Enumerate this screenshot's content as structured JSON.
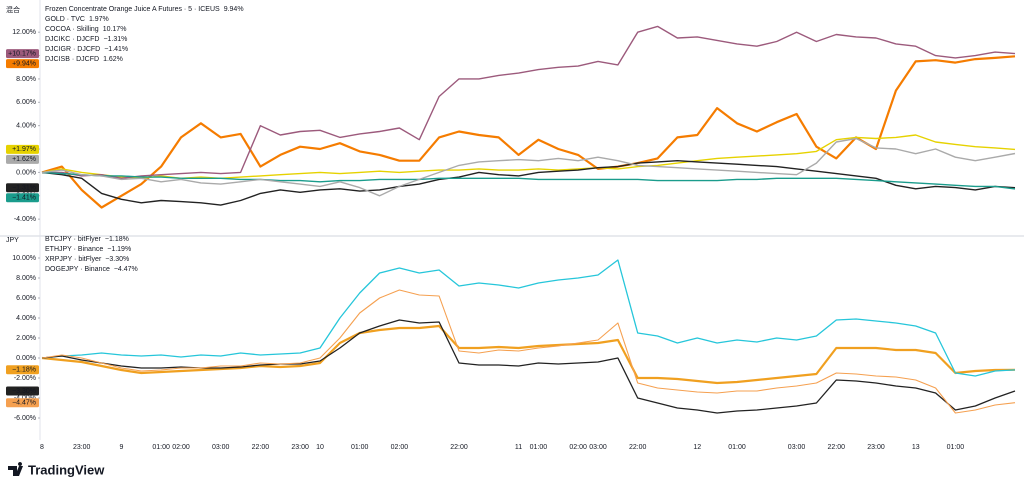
{
  "chart_data": [
    {
      "type": "line",
      "pane_label": "混合",
      "title": "Frozen Concentrate Orange Juice A Futures · 5 · ICEUS",
      "ylim": [
        -5.1,
        13.9
      ],
      "yticks": [
        {
          "value": -4,
          "label": "-4.00%"
        },
        {
          "value": -2,
          "label": "-2.00%"
        },
        {
          "value": 0,
          "label": "0.00%"
        },
        {
          "value": 2,
          "label": "2.00%"
        },
        {
          "value": 4,
          "label": "4.00%"
        },
        {
          "value": 6,
          "label": "6.00%"
        },
        {
          "value": 8,
          "label": "8.00%"
        },
        {
          "value": 10,
          "label": "10.00%"
        },
        {
          "value": 12,
          "label": "12.00%"
        }
      ],
      "grid": false,
      "series": [
        {
          "name": "Frozen Concentrate Orange Juice A Futures · 5 · ICEUS",
          "legend_name": "",
          "change": "9.94%",
          "badge": "+9.94%",
          "color": "#f57c00",
          "width": 2.2,
          "values": [
            0,
            0.5,
            -1.5,
            -3,
            -2,
            -1,
            0.5,
            3,
            4.2,
            3,
            3.3,
            0.5,
            1.5,
            2.2,
            2,
            2.5,
            1.8,
            1.5,
            1,
            1,
            3,
            3.5,
            3.2,
            3,
            1.5,
            2.8,
            2,
            1.5,
            0.3,
            0.5,
            0.8,
            1.2,
            3,
            3.2,
            5.5,
            4.2,
            3.5,
            4.3,
            5,
            2.2,
            1.2,
            3,
            2,
            7,
            9.5,
            9.6,
            9.4,
            9.7,
            9.8,
            9.94
          ]
        },
        {
          "name": "GOLD · TVC",
          "change": "1.97%",
          "badge": "+1.97%",
          "color": "#e6d200",
          "width": 1.4,
          "values": [
            0,
            0.3,
            0,
            -0.2,
            -0.4,
            -0.5,
            -0.3,
            -0.5,
            -0.4,
            -0.5,
            -0.4,
            -0.3,
            -0.2,
            -0.1,
            0,
            -0.1,
            0,
            0.1,
            0,
            0.1,
            0.2,
            0.2,
            0.3,
            0.2,
            0.2,
            0.3,
            0.2,
            0.3,
            0.4,
            0.3,
            0.5,
            0.6,
            0.8,
            1,
            1.2,
            1.3,
            1.4,
            1.5,
            1.6,
            1.8,
            2.8,
            3,
            2.9,
            3,
            3.2,
            2.6,
            2.4,
            2.2,
            2.1,
            1.97
          ]
        },
        {
          "name": "COCOA · Skilling",
          "change": "10.17%",
          "badge": "+10.17%",
          "color": "#9c5a7c",
          "width": 1.4,
          "values": [
            0,
            0,
            -0.3,
            -0.2,
            -0.5,
            -0.3,
            -0.2,
            -0.1,
            0,
            -0.1,
            0,
            4,
            3.2,
            3.5,
            3.6,
            3,
            3.3,
            3.5,
            3.8,
            2.8,
            6.5,
            8,
            8,
            8.3,
            8.5,
            8.8,
            9,
            9.1,
            9.5,
            9.2,
            12,
            12.5,
            11.5,
            11.6,
            11.3,
            11,
            10.8,
            11.2,
            12,
            11.2,
            11.8,
            11.6,
            11.5,
            11,
            10.8,
            10,
            9.8,
            10,
            10.3,
            10.17
          ]
        },
        {
          "name": "DJCIKC · DJCFD",
          "change": "−1.31%",
          "badge": "−1.31%",
          "color": "#222222",
          "width": 1.4,
          "values": [
            0,
            -0.2,
            -0.5,
            -1.8,
            -2.3,
            -2.6,
            -2.4,
            -2.5,
            -2.6,
            -2.8,
            -2.4,
            -1.8,
            -1.5,
            -1.7,
            -1.5,
            -1.4,
            -1.6,
            -1.5,
            -1.2,
            -1,
            -0.6,
            -0.4,
            0,
            -0.2,
            -0.3,
            0,
            0.1,
            0.2,
            0.4,
            0.5,
            0.8,
            0.9,
            1,
            0.9,
            0.8,
            0.7,
            0.6,
            0.5,
            0.3,
            0.1,
            -0.1,
            -0.3,
            -0.5,
            -1.1,
            -1.4,
            -1.2,
            -1.3,
            -1.5,
            -1.2,
            -1.31
          ]
        },
        {
          "name": "DJCIGR · DJCFD",
          "change": "−1.41%",
          "badge": "−1.41%",
          "color": "#1a9c8c",
          "width": 1.4,
          "values": [
            0,
            -0.1,
            -0.2,
            -0.3,
            -0.3,
            -0.4,
            -0.4,
            -0.5,
            -0.5,
            -0.5,
            -0.6,
            -0.6,
            -0.7,
            -0.7,
            -0.8,
            -0.7,
            -0.7,
            -0.6,
            -0.6,
            -0.6,
            -0.5,
            -0.5,
            -0.5,
            -0.5,
            -0.5,
            -0.6,
            -0.6,
            -0.6,
            -0.6,
            -0.6,
            -0.6,
            -0.7,
            -0.7,
            -0.7,
            -0.7,
            -0.6,
            -0.6,
            -0.5,
            -0.5,
            -0.5,
            -0.5,
            -0.6,
            -0.7,
            -0.8,
            -0.9,
            -1,
            -1.1,
            -1.2,
            -1.2,
            -1.41
          ]
        },
        {
          "name": "DJCISB · DJCFD",
          "change": "1.62%",
          "badge": "+1.62%",
          "color": "#aaaaaa",
          "width": 1.4,
          "values": [
            0,
            0.2,
            -0.2,
            -0.3,
            -0.6,
            -0.5,
            -0.8,
            -0.6,
            -0.9,
            -1,
            -0.8,
            -0.6,
            -0.8,
            -1,
            -1.2,
            -0.8,
            -1.3,
            -2,
            -1.2,
            -0.6,
            0,
            0.6,
            0.9,
            1,
            1.1,
            1,
            1.2,
            1,
            1.3,
            1,
            0.6,
            0.5,
            0.4,
            0.3,
            0.2,
            0.1,
            0,
            -0.1,
            -0.2,
            0.8,
            2.6,
            2.9,
            2.1,
            2,
            1.6,
            2,
            1.3,
            1,
            1.3,
            1.62
          ]
        }
      ]
    },
    {
      "type": "line",
      "pane_label": "JPY",
      "categories": [
        "8",
        null,
        "23:00",
        null,
        "9",
        null,
        "01:00",
        "02:00",
        null,
        "03:00",
        null,
        "22:00",
        null,
        "23:00",
        "10",
        null,
        "01:00",
        null,
        "02:00",
        null,
        null,
        "22:00",
        null,
        null,
        "11",
        "01:00",
        null,
        "02:00",
        "03:00",
        null,
        "22:00",
        null,
        null,
        "12",
        null,
        "01:00",
        null,
        null,
        "03:00",
        null,
        "22:00",
        null,
        "23:00",
        null,
        "13",
        null,
        "01:00",
        null,
        null,
        null
      ],
      "ylim": [
        -7.7,
        11.8
      ],
      "yticks": [
        {
          "value": -6,
          "label": "-6.00%"
        },
        {
          "value": -4,
          "label": "-4.00%"
        },
        {
          "value": -2,
          "label": "-2.00%"
        },
        {
          "value": 0,
          "label": "0.00%"
        },
        {
          "value": 2,
          "label": "2.00%"
        },
        {
          "value": 4,
          "label": "4.00%"
        },
        {
          "value": 6,
          "label": "6.00%"
        },
        {
          "value": 8,
          "label": "8.00%"
        },
        {
          "value": 10,
          "label": "10.00%"
        }
      ],
      "grid": false,
      "series": [
        {
          "name": "BTCJPY · bitFlyer",
          "change": "−1.18%",
          "badge": "−1.18%",
          "color": "#f0a020",
          "width": 2.2,
          "values": [
            0,
            -0.2,
            -0.4,
            -0.8,
            -1.2,
            -1.5,
            -1.4,
            -1.3,
            -1.2,
            -1.1,
            -1,
            -0.8,
            -0.9,
            -0.8,
            -0.5,
            1.5,
            2.5,
            2.8,
            3,
            3,
            3.2,
            1,
            1,
            1.1,
            1,
            1.2,
            1.3,
            1.4,
            1.5,
            1.8,
            -2,
            -2,
            -2.1,
            -2.3,
            -2.5,
            -2.4,
            -2.2,
            -2,
            -1.8,
            -1.6,
            1,
            1,
            1,
            0.8,
            0.8,
            0.5,
            -1.5,
            -1.3,
            -1.2,
            -1.18
          ]
        },
        {
          "name": "ETHJPY · Binance",
          "change": "−1.19%",
          "color": "#26c6da",
          "width": 1.3,
          "values": [
            0,
            0.2,
            0.3,
            0.5,
            0.3,
            0.2,
            0.3,
            0.1,
            0.3,
            0.2,
            0.5,
            0.3,
            0.4,
            0.5,
            1,
            4,
            6.5,
            8.5,
            9,
            8.5,
            8.8,
            7.2,
            7.5,
            7.3,
            7,
            7.5,
            7.8,
            8,
            8.3,
            9.8,
            2.5,
            2.2,
            1.5,
            2,
            1.5,
            1.8,
            1.6,
            2,
            1.8,
            2.2,
            3.8,
            3.9,
            3.7,
            3.5,
            3.2,
            2.5,
            -1.5,
            -1.8,
            -1.3,
            -1.19
          ]
        },
        {
          "name": "XRPJPY · bitFlyer",
          "change": "−3.30%",
          "badge": "−3.30%",
          "color": "#222222",
          "width": 1.3,
          "values": [
            0,
            0.2,
            -0.2,
            -0.5,
            -0.8,
            -1,
            -1,
            -0.9,
            -1,
            -1,
            -0.9,
            -0.7,
            -0.6,
            -0.6,
            -0.3,
            1,
            2.5,
            3.2,
            3.8,
            3.5,
            3.6,
            -0.5,
            -0.7,
            -0.7,
            -0.8,
            -0.5,
            -0.6,
            -0.5,
            -0.4,
            0,
            -4,
            -4.5,
            -5,
            -5.2,
            -5.5,
            -5.3,
            -5.2,
            -5,
            -4.8,
            -4.5,
            -2.2,
            -2.3,
            -2.5,
            -2.8,
            -3,
            -3.5,
            -5.2,
            -4.8,
            -4,
            -3.3
          ]
        },
        {
          "name": "DOGEJPY · Binance",
          "change": "−4.47%",
          "badge": "−4.47%",
          "color": "#f5a050",
          "width": 1.1,
          "values": [
            0,
            0.3,
            0,
            -0.5,
            -1,
            -1.3,
            -1.2,
            -1,
            -1,
            -0.8,
            -0.8,
            -0.5,
            -0.6,
            -0.5,
            0,
            2,
            4.5,
            6,
            6.8,
            6.3,
            6.2,
            0.7,
            0.5,
            0.8,
            0.7,
            1,
            1.2,
            1.5,
            1.8,
            3.5,
            -2.5,
            -3,
            -3.2,
            -3.4,
            -3.5,
            -3.3,
            -3.3,
            -3,
            -2.8,
            -2.5,
            -1.5,
            -1.6,
            -1.8,
            -1.9,
            -2.2,
            -3,
            -5.5,
            -5.2,
            -4.7,
            -4.47
          ]
        }
      ]
    }
  ],
  "footer": {
    "brand": "TradingView"
  }
}
